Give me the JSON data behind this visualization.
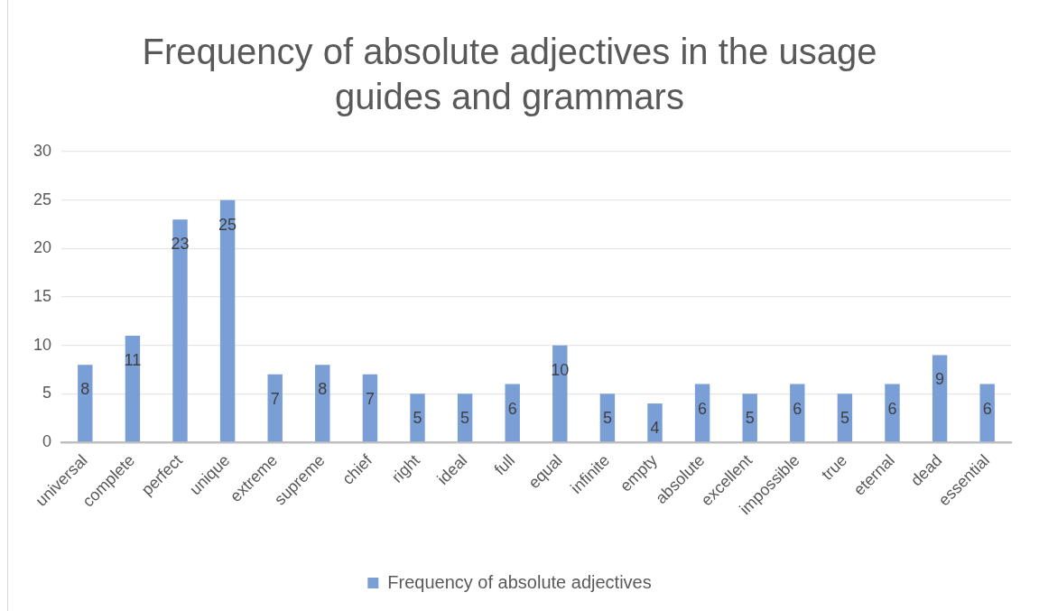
{
  "chart_data": {
    "type": "bar",
    "title": "Frequency of absolute adjectives in the usage guides and grammars",
    "categories": [
      "universal",
      "complete",
      "perfect",
      "unique",
      "extreme",
      "supreme",
      "chief",
      "right",
      "ideal",
      "full",
      "equal",
      "infinite",
      "empty",
      "absolute",
      "excellent",
      "impossible",
      "true",
      "eternal",
      "dead",
      "essential"
    ],
    "series": [
      {
        "name": "Frequency of absolute adjectives",
        "color": "#7a9fd6",
        "values": [
          8,
          11,
          23,
          25,
          7,
          8,
          7,
          5,
          5,
          6,
          10,
          5,
          4,
          6,
          5,
          6,
          5,
          6,
          9,
          6
        ]
      }
    ],
    "ylim": [
      0,
      30
    ],
    "yticks": [
      0,
      5,
      10,
      15,
      20,
      25,
      30
    ],
    "grid": "y",
    "legend": "bottom",
    "data_labels": true
  }
}
